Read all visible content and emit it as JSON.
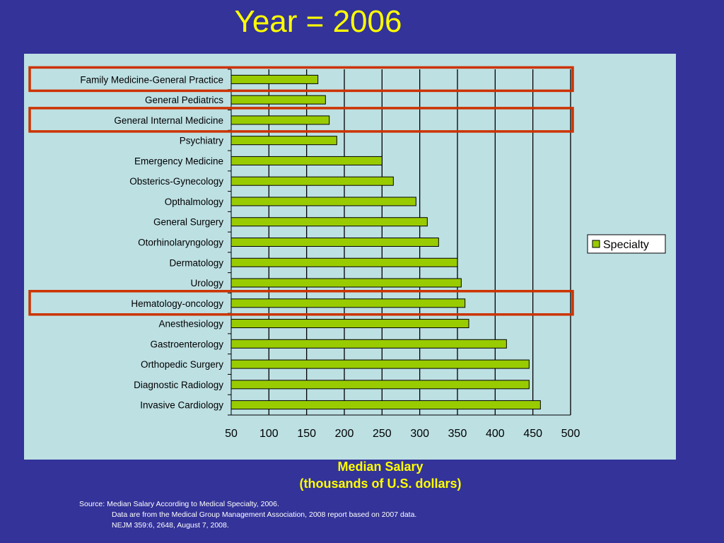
{
  "slide": {
    "title": "Year = 2006",
    "source_lines": [
      "Source:  Median Salary According to Medical Specialty, 2006.",
      "Data are from the Medical Group Management Association, 2008 report based on 2007 data.",
      "NEJM 359:6, 2648, August 7, 2008."
    ]
  },
  "colors": {
    "background": "#333399",
    "plot_area": "#bde0e3",
    "bar_fill": "#99cc00",
    "highlight_box": "#cc3300",
    "title_text": "#ffff00"
  },
  "chart_data": {
    "type": "bar",
    "orientation": "horizontal",
    "title": "Year = 2006",
    "xlabel": "Median Salary\n(thousands of U.S. dollars)",
    "xlabel_lines": [
      "Median Salary",
      "(thousands of U.S. dollars)"
    ],
    "ylabel": "",
    "xlim": [
      50,
      500
    ],
    "xticks": [
      50,
      100,
      150,
      200,
      250,
      300,
      350,
      400,
      450,
      500
    ],
    "grid": "vertical",
    "legend": {
      "entries": [
        "Specialty"
      ],
      "placement": "right"
    },
    "categories": [
      "Family Medicine-General Practice",
      "General Pediatrics",
      "General Internal Medicine",
      "Psychiatry",
      "Emergency Medicine",
      "Obsterics-Gynecology",
      "Opthalmology",
      "General Surgery",
      "Otorhinolaryngology",
      "Dermatology",
      "Urology",
      "Hematology-oncology",
      "Anesthesiology",
      "Gastroenterology",
      "Orthopedic Surgery",
      "Diagnostic Radiology",
      "Invasive Cardiology"
    ],
    "series": [
      {
        "name": "Specialty",
        "values": [
          165,
          175,
          180,
          190,
          250,
          265,
          295,
          310,
          325,
          350,
          355,
          360,
          365,
          415,
          445,
          445,
          460
        ]
      }
    ],
    "highlighted_categories": [
      "Family Medicine-General Practice",
      "General Internal Medicine",
      "Hematology-oncology"
    ]
  }
}
